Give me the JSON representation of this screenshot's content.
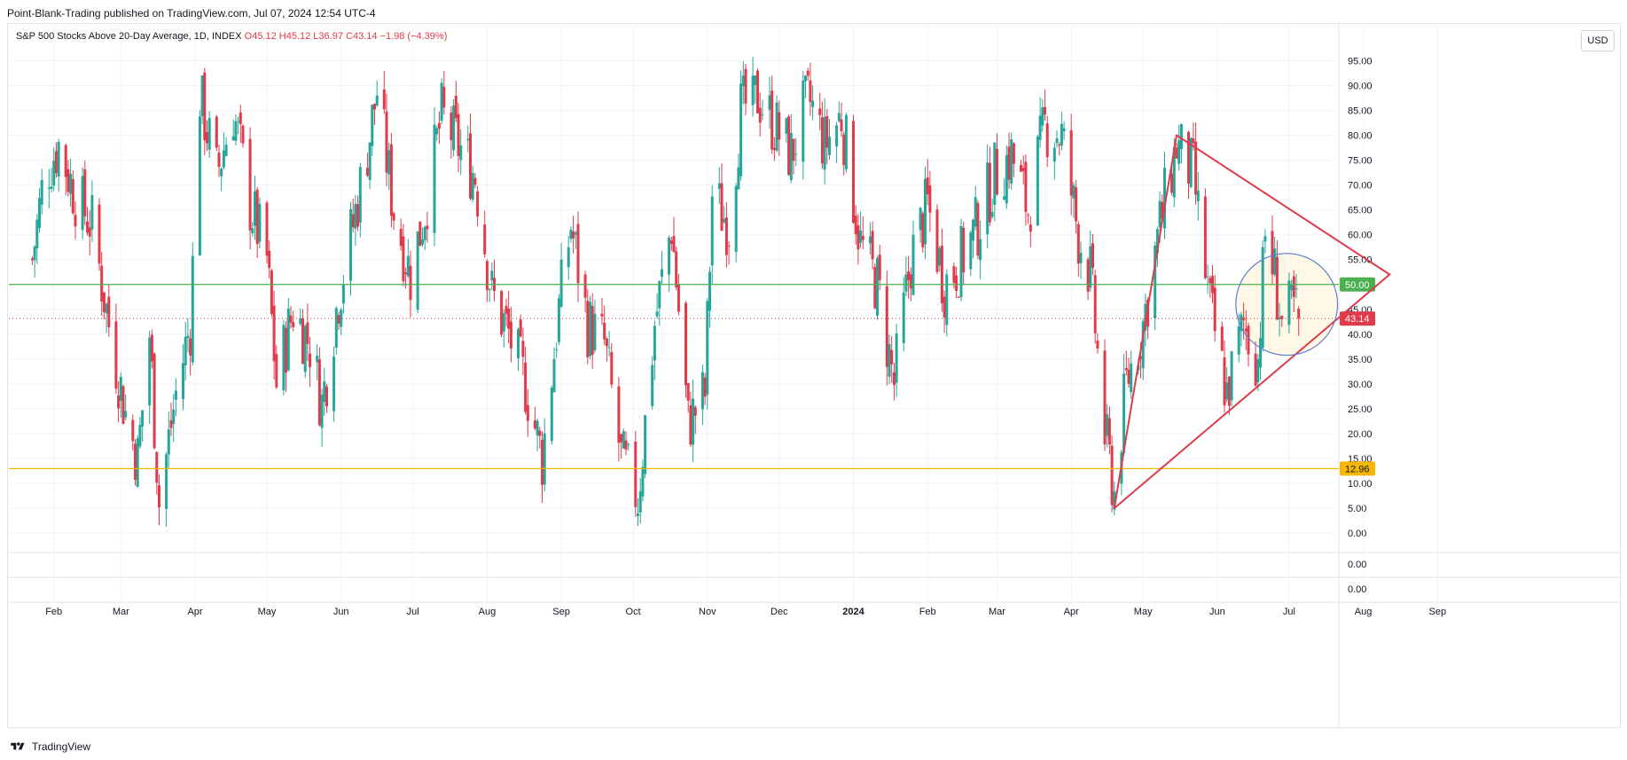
{
  "header": {
    "published": "Point-Blank-Trading published on TradingView.com, Jul 07, 2024 12:54 UTC-4"
  },
  "symbol": {
    "name": "S&P 500 Stocks Above 20-Day Average, 1D, INDEX",
    "ohlc": "O45.12 H45.12 L36.97 C43.14 −1.98 (−4.39%)"
  },
  "currency_label": "USD",
  "footer": {
    "brand": "TradingView"
  },
  "colors": {
    "up": "#26a69a",
    "down": "#e03a4b",
    "green_line": "#4caf50",
    "yellow_line": "#f5b700",
    "triangle": "#e03a4b",
    "circle": "#5b7fcf",
    "circle_fill": "#fff8e6",
    "grid": "#f0f3fa"
  },
  "chart_data": {
    "type": "candlestick",
    "title": "S&P 500 Stocks Above 20-Day Average, 1D, INDEX",
    "ylim": [
      0,
      95
    ],
    "y_ticks": [
      "95.00",
      "90.00",
      "85.00",
      "80.00",
      "75.00",
      "70.00",
      "65.00",
      "60.00",
      "55.00",
      "50.00",
      "45.00",
      "40.00",
      "35.00",
      "30.00",
      "25.00",
      "20.00",
      "15.00",
      "10.00",
      "5.00",
      "0.00"
    ],
    "x_ticks": [
      "Feb",
      "Mar",
      "Apr",
      "May",
      "Jun",
      "Jul",
      "Aug",
      "Sep",
      "Oct",
      "Nov",
      "Dec",
      "2024",
      "Feb",
      "Mar",
      "Apr",
      "May",
      "Jun",
      "Jul",
      "Aug",
      "Sep"
    ],
    "sub_pane_ticks": [
      "0.00",
      "0.00"
    ],
    "horizontal_lines": [
      {
        "name": "50 level",
        "value": 50.0,
        "label": "50.00",
        "color": "#4caf50"
      },
      {
        "name": "12.96 level",
        "value": 12.96,
        "label": "12.96",
        "color": "#f5b700"
      }
    ],
    "last_price": {
      "value": 43.14,
      "label": "43.14"
    },
    "close_series": [
      {
        "date": "2023-01-23",
        "v": 55
      },
      {
        "date": "2023-01-28",
        "v": 72
      },
      {
        "date": "2023-02-03",
        "v": 78
      },
      {
        "date": "2023-02-10",
        "v": 68
      },
      {
        "date": "2023-02-17",
        "v": 62
      },
      {
        "date": "2023-02-24",
        "v": 42
      },
      {
        "date": "2023-03-03",
        "v": 24
      },
      {
        "date": "2023-03-08",
        "v": 15
      },
      {
        "date": "2023-03-13",
        "v": 40
      },
      {
        "date": "2023-03-17",
        "v": 6
      },
      {
        "date": "2023-03-24",
        "v": 28
      },
      {
        "date": "2023-03-30",
        "v": 42
      },
      {
        "date": "2023-04-03",
        "v": 88
      },
      {
        "date": "2023-04-10",
        "v": 72
      },
      {
        "date": "2023-04-17",
        "v": 85
      },
      {
        "date": "2023-04-24",
        "v": 66
      },
      {
        "date": "2023-05-01",
        "v": 55
      },
      {
        "date": "2023-05-05",
        "v": 30
      },
      {
        "date": "2023-05-12",
        "v": 45
      },
      {
        "date": "2023-05-19",
        "v": 38
      },
      {
        "date": "2023-05-24",
        "v": 26
      },
      {
        "date": "2023-05-31",
        "v": 48
      },
      {
        "date": "2023-06-06",
        "v": 62
      },
      {
        "date": "2023-06-13",
        "v": 80
      },
      {
        "date": "2023-06-16",
        "v": 89
      },
      {
        "date": "2023-06-23",
        "v": 65
      },
      {
        "date": "2023-06-30",
        "v": 52
      },
      {
        "date": "2023-07-06",
        "v": 65
      },
      {
        "date": "2023-07-13",
        "v": 84
      },
      {
        "date": "2023-07-20",
        "v": 78
      },
      {
        "date": "2023-07-27",
        "v": 72
      },
      {
        "date": "2023-08-03",
        "v": 48
      },
      {
        "date": "2023-08-10",
        "v": 40
      },
      {
        "date": "2023-08-17",
        "v": 30
      },
      {
        "date": "2023-08-24",
        "v": 15
      },
      {
        "date": "2023-08-31",
        "v": 45
      },
      {
        "date": "2023-09-05",
        "v": 62
      },
      {
        "date": "2023-09-12",
        "v": 42
      },
      {
        "date": "2023-09-19",
        "v": 38
      },
      {
        "date": "2023-09-26",
        "v": 15
      },
      {
        "date": "2023-10-03",
        "v": 7
      },
      {
        "date": "2023-10-10",
        "v": 42
      },
      {
        "date": "2023-10-17",
        "v": 62
      },
      {
        "date": "2023-10-24",
        "v": 22
      },
      {
        "date": "2023-10-31",
        "v": 28
      },
      {
        "date": "2023-11-03",
        "v": 68
      },
      {
        "date": "2023-11-10",
        "v": 62
      },
      {
        "date": "2023-11-15",
        "v": 85
      },
      {
        "date": "2023-11-22",
        "v": 88
      },
      {
        "date": "2023-11-29",
        "v": 82
      },
      {
        "date": "2023-12-06",
        "v": 76
      },
      {
        "date": "2023-12-13",
        "v": 88
      },
      {
        "date": "2023-12-20",
        "v": 78
      },
      {
        "date": "2023-12-27",
        "v": 84
      },
      {
        "date": "2024-01-04",
        "v": 58
      },
      {
        "date": "2024-01-11",
        "v": 50
      },
      {
        "date": "2024-01-18",
        "v": 30
      },
      {
        "date": "2024-01-25",
        "v": 55
      },
      {
        "date": "2024-02-01",
        "v": 66
      },
      {
        "date": "2024-02-08",
        "v": 50
      },
      {
        "date": "2024-02-15",
        "v": 55
      },
      {
        "date": "2024-02-22",
        "v": 62
      },
      {
        "date": "2024-02-29",
        "v": 72
      },
      {
        "date": "2024-03-07",
        "v": 76
      },
      {
        "date": "2024-03-14",
        "v": 65
      },
      {
        "date": "2024-03-21",
        "v": 82
      },
      {
        "date": "2024-03-28",
        "v": 80
      },
      {
        "date": "2024-04-04",
        "v": 60
      },
      {
        "date": "2024-04-09",
        "v": 52
      },
      {
        "date": "2024-04-15",
        "v": 20
      },
      {
        "date": "2024-04-19",
        "v": 8
      },
      {
        "date": "2024-04-24",
        "v": 30
      },
      {
        "date": "2024-05-01",
        "v": 42
      },
      {
        "date": "2024-05-08",
        "v": 62
      },
      {
        "date": "2024-05-15",
        "v": 78
      },
      {
        "date": "2024-05-22",
        "v": 72
      },
      {
        "date": "2024-05-29",
        "v": 45
      },
      {
        "date": "2024-06-05",
        "v": 28
      },
      {
        "date": "2024-06-12",
        "v": 42
      },
      {
        "date": "2024-06-18",
        "v": 35
      },
      {
        "date": "2024-06-21",
        "v": 60
      },
      {
        "date": "2024-06-25",
        "v": 52
      },
      {
        "date": "2024-06-28",
        "v": 42
      },
      {
        "date": "2024-07-03",
        "v": 45
      },
      {
        "date": "2024-07-05",
        "v": 43.14
      }
    ],
    "annotations": [
      {
        "type": "triangle",
        "points": [
          {
            "date": "2024-04-19",
            "v": 5
          },
          {
            "date": "2024-05-15",
            "v": 80
          },
          {
            "date": "2024-08-12",
            "v": 52
          }
        ]
      },
      {
        "type": "circle",
        "center": {
          "date": "2024-06-30",
          "v": 46
        },
        "radius_days": 17
      }
    ]
  }
}
